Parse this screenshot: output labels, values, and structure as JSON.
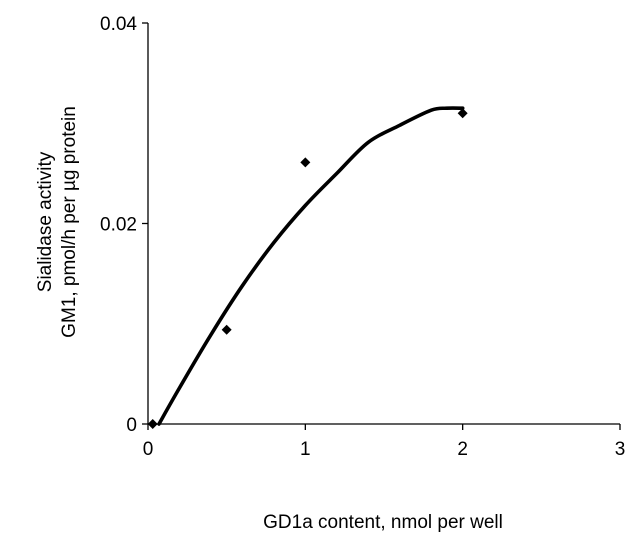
{
  "chart_data": {
    "type": "scatter",
    "title": "",
    "xlabel": "GD1a content, nmol per well",
    "ylabel_lines": [
      "Sialidase activity",
      "GM1, pmol/h per µg protein"
    ],
    "xlim": [
      0,
      3
    ],
    "ylim": [
      0,
      0.04
    ],
    "x_ticks": [
      0,
      1,
      2,
      3
    ],
    "x_tick_labels": [
      "0",
      "1",
      "2",
      "3"
    ],
    "y_ticks": [
      0,
      0.02,
      0.04
    ],
    "y_tick_labels": [
      "0",
      "0.02",
      "0.04"
    ],
    "grid": false,
    "legend": "none",
    "series": [
      {
        "kind": "points",
        "marker": "diamond",
        "x": [
          0.03,
          0.5,
          1.0,
          2.0
        ],
        "y": [
          0.0,
          0.0094,
          0.0261,
          0.031
        ]
      },
      {
        "kind": "trendline",
        "x": [
          0.07,
          0.2,
          0.4,
          0.6,
          0.8,
          1.0,
          1.2,
          1.4,
          1.6,
          1.8,
          1.9,
          2.0
        ],
        "y": [
          0.0,
          0.0036,
          0.0089,
          0.0138,
          0.0181,
          0.0218,
          0.025,
          0.0281,
          0.0298,
          0.0313,
          0.0315,
          0.0315
        ]
      }
    ],
    "colors": {
      "axis": "#000000",
      "marker": "#000000",
      "line": "#000000"
    }
  }
}
